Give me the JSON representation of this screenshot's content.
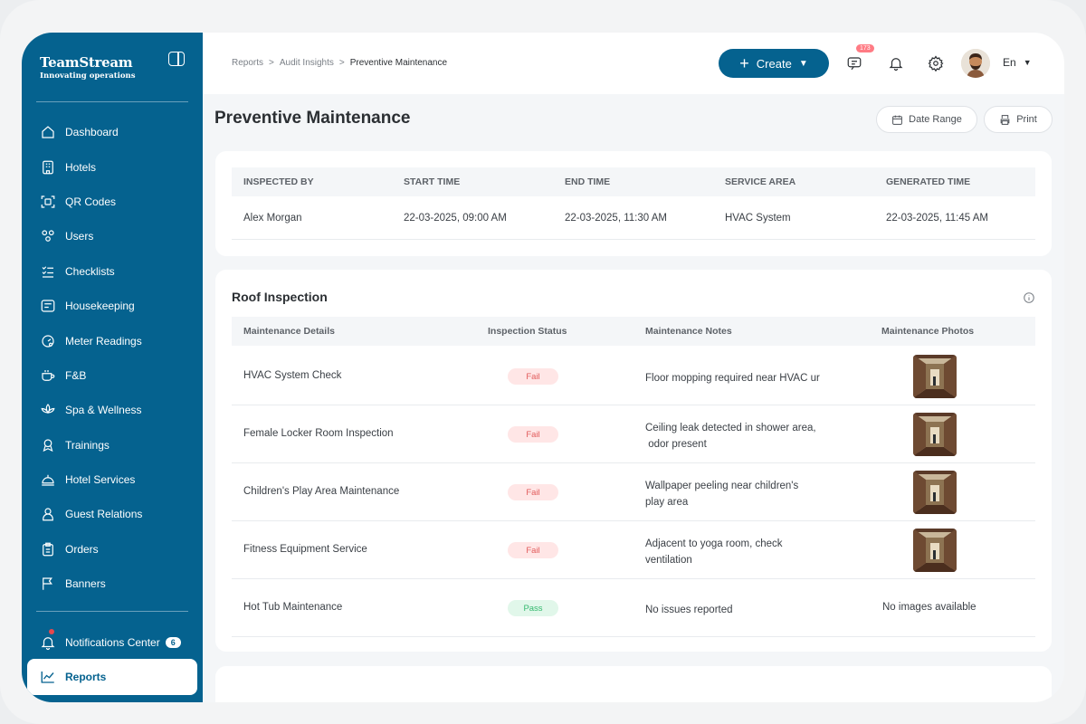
{
  "brand": {
    "name": "TeamStream",
    "tagline": "Innovating operations"
  },
  "sidebar": {
    "items": [
      {
        "label": "Dashboard",
        "icon": "home-icon"
      },
      {
        "label": "Hotels",
        "icon": "building-icon"
      },
      {
        "label": "QR Codes",
        "icon": "qr-icon"
      },
      {
        "label": "Users",
        "icon": "users-icon"
      },
      {
        "label": "Checklists",
        "icon": "checklist-icon"
      },
      {
        "label": "Housekeeping",
        "icon": "housekeeping-icon"
      },
      {
        "label": "Meter Readings",
        "icon": "meter-icon"
      },
      {
        "label": "F&B",
        "icon": "cup-icon"
      },
      {
        "label": "Spa & Wellness",
        "icon": "lotus-icon"
      },
      {
        "label": "Trainings",
        "icon": "award-icon"
      },
      {
        "label": "Hotel Services",
        "icon": "bell-service-icon"
      },
      {
        "label": "Guest Relations",
        "icon": "user-icon"
      },
      {
        "label": "Orders",
        "icon": "clipboard-icon"
      },
      {
        "label": "Banners",
        "icon": "flag-icon"
      }
    ],
    "notifications": {
      "label": "Notifications Center",
      "count": "6"
    },
    "active": {
      "label": "Reports"
    }
  },
  "topbar": {
    "breadcrumb": [
      "Reports",
      "Audit Insights",
      "Preventive Maintenance"
    ],
    "create_label": "Create",
    "message_badge": "173",
    "language": "En"
  },
  "page": {
    "title": "Preventive Maintenance",
    "date_range_label": "Date Range",
    "print_label": "Print"
  },
  "summary": {
    "headers": [
      "INSPECTED BY",
      "START TIME",
      "END TIME",
      "SERVICE AREA",
      "GENERATED TIME"
    ],
    "values": [
      "Alex Morgan",
      "22-03-2025, 09:00 AM",
      "22-03-2025, 11:30 AM",
      "HVAC System",
      "22-03-2025, 11:45 AM"
    ]
  },
  "inspection": {
    "title": "Roof Inspection",
    "headers": [
      "Maintenance Details",
      "Inspection Status",
      "Maintenance Notes",
      "Maintenance Photos"
    ],
    "rows": [
      {
        "detail": "HVAC System Check",
        "status": "Fail",
        "note1": "Floor mopping required near HVAC ur",
        "note2": "",
        "photo": true
      },
      {
        "detail": "Female Locker Room Inspection",
        "status": "Fail",
        "note1": "Ceiling leak detected in shower area,",
        "note2": " odor present",
        "photo": true
      },
      {
        "detail": "Children's Play Area Maintenance",
        "status": "Fail",
        "note1": "Wallpaper peeling near children's",
        "note2": "play area",
        "photo": true
      },
      {
        "detail": "Fitness Equipment Service",
        "status": "Fail",
        "note1": "Adjacent to yoga room, check",
        "note2": "ventilation",
        "photo": true
      },
      {
        "detail": "Hot Tub Maintenance",
        "status": "Pass",
        "note1": "No issues reported",
        "note2": "",
        "photo": false,
        "no_photo_text": "No images available"
      }
    ]
  },
  "colors": {
    "primary": "#05628f",
    "fail": "#e15b5b",
    "pass": "#35b96f"
  }
}
